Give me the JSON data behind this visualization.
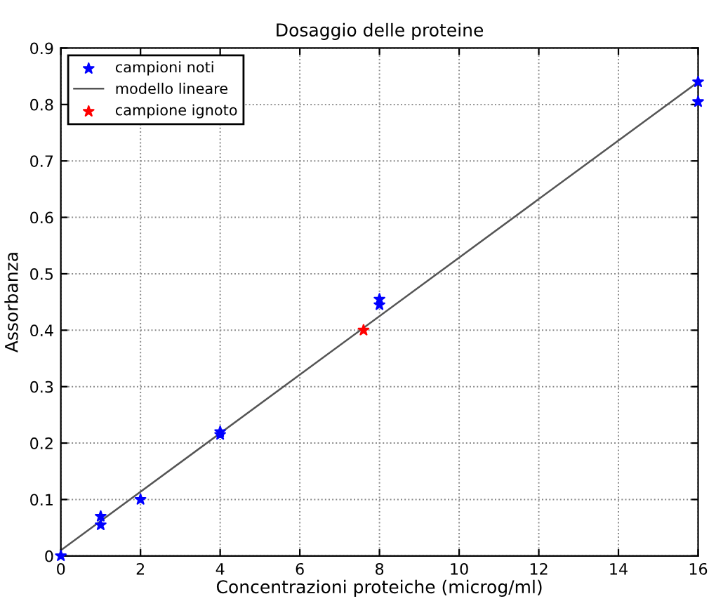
{
  "chart_data": {
    "type": "scatter",
    "title": "Dosaggio delle proteine",
    "xlabel": "Concentrazioni proteiche (microg/ml)",
    "ylabel": "Assorbanza",
    "xlim": [
      0,
      16
    ],
    "ylim": [
      0,
      0.9
    ],
    "xticks": [
      0,
      2,
      4,
      6,
      8,
      10,
      12,
      14,
      16
    ],
    "yticks": [
      0,
      0.1,
      0.2,
      0.3,
      0.4,
      0.5,
      0.6,
      0.7,
      0.8,
      0.9
    ],
    "grid": true,
    "legend": "top left",
    "series": [
      {
        "name": "campioni noti",
        "marker": "star",
        "color": "#0000ff",
        "x": [
          0,
          1,
          1,
          2,
          4,
          4,
          8,
          8,
          16,
          16
        ],
        "values": [
          0,
          0.07,
          0.055,
          0.1,
          0.22,
          0.215,
          0.455,
          0.445,
          0.84,
          0.805
        ]
      },
      {
        "name": "modello lineare",
        "type": "line",
        "line_style": "solid",
        "color": "#555555",
        "x": [
          0,
          16
        ],
        "values": [
          0.01,
          0.84
        ]
      },
      {
        "name": "campione ignoto",
        "marker": "star",
        "color": "#ff0000",
        "x": [
          7.6
        ],
        "values": [
          0.4
        ]
      }
    ]
  }
}
